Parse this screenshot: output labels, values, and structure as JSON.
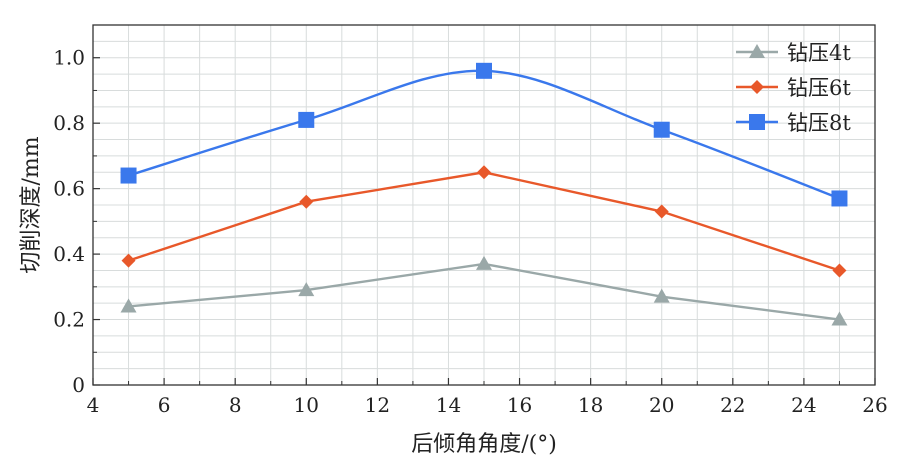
{
  "chart_data": {
    "type": "line",
    "xlabel": "后倾角角度/(°)",
    "ylabel": "切削深度/mm",
    "xlim": [
      4,
      26
    ],
    "ylim": [
      0,
      1.1
    ],
    "xticks": [
      4,
      6,
      8,
      10,
      12,
      14,
      16,
      18,
      20,
      22,
      24,
      26
    ],
    "yticks": [
      0,
      0.2,
      0.4,
      0.6,
      0.8,
      1.0
    ],
    "xtick_labels": [
      "4",
      "6",
      "8",
      "10",
      "12",
      "14",
      "16",
      "18",
      "20",
      "22",
      "24",
      "26"
    ],
    "ytick_labels": [
      "0",
      "0.2",
      "0.4",
      "0.6",
      "0.8",
      "1.0"
    ],
    "grid": true,
    "legend_position": "top-right",
    "x": [
      5,
      10,
      15,
      20,
      25
    ],
    "series": [
      {
        "name": "钻压4t",
        "values": [
          0.24,
          0.29,
          0.37,
          0.27,
          0.2
        ],
        "color": "#9aa8a8",
        "marker": "triangle",
        "smooth": false
      },
      {
        "name": "钻压6t",
        "values": [
          0.38,
          0.56,
          0.65,
          0.53,
          0.35
        ],
        "color": "#e8582a",
        "marker": "diamond",
        "smooth": false
      },
      {
        "name": "钻压8t",
        "values": [
          0.64,
          0.81,
          0.96,
          0.78,
          0.57
        ],
        "color": "#3a78ec",
        "marker": "square",
        "smooth": true
      }
    ]
  }
}
